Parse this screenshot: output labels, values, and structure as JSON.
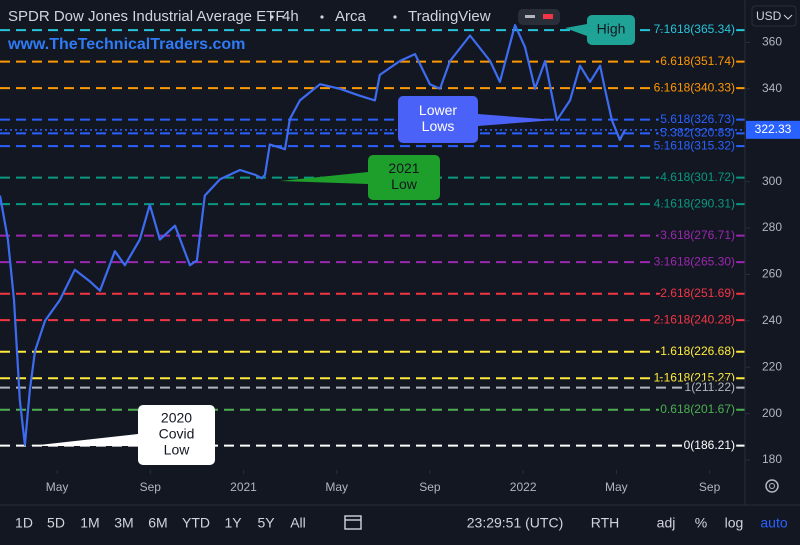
{
  "chart_data": {
    "type": "line",
    "title": "SPDR Dow Jones Industrial Average ETF",
    "interval": "4h",
    "exchange": "Arca",
    "source": "TradingView",
    "watermark": "www.TheTechnicalTraders.com",
    "currency": "USD",
    "last_price": 322.33,
    "xlim": [
      1.55,
      33.52
    ],
    "xticks": [
      {
        "value": 4,
        "label": "May"
      },
      {
        "value": 8,
        "label": "Sep"
      },
      {
        "value": 12,
        "label": "2021"
      },
      {
        "value": 16,
        "label": "May"
      },
      {
        "value": 20,
        "label": "Sep"
      },
      {
        "value": 24,
        "label": "2022"
      },
      {
        "value": 28,
        "label": "May"
      },
      {
        "value": 32,
        "label": "Sep"
      }
    ],
    "ylim": [
      175.7,
      378.3
    ],
    "yticks": [
      180,
      200,
      220,
      240,
      260,
      280,
      300,
      320,
      340,
      360
    ],
    "series": [
      {
        "color": "#3d6cf0",
        "x": [
          1.55,
          1.89,
          2.15,
          2.4,
          2.62,
          2.83,
          3.05,
          3.48,
          4.12,
          4.76,
          5.41,
          5.84,
          6.48,
          6.91,
          7.55,
          7.98,
          8.41,
          9.06,
          9.7,
          10.0,
          10.34,
          10.99,
          11.85,
          12.49,
          12.79,
          12.92,
          13.13,
          13.78,
          13.99,
          14.42,
          15.28,
          16.14,
          17.0,
          17.64,
          17.85,
          18.71,
          19.36,
          20.0,
          20.43,
          20.86,
          21.72,
          22.58,
          23.0,
          23.65,
          24.08,
          24.51,
          24.94,
          25.45,
          26.01,
          26.44,
          26.87,
          27.3,
          27.51,
          27.81,
          28.15,
          28.37
        ],
        "values": [
          294,
          275,
          249,
          206,
          186.5,
          210,
          227,
          240,
          249,
          262,
          257,
          253,
          270,
          264,
          275,
          290,
          275,
          281,
          264,
          266,
          294,
          301,
          305,
          303,
          301.5,
          303,
          316,
          314,
          327,
          335,
          342,
          340,
          337,
          335,
          346,
          352,
          355,
          342,
          340,
          352,
          363,
          352,
          343,
          367.5,
          358,
          340,
          352,
          326.5,
          335,
          350,
          343,
          350,
          340,
          326.5,
          318,
          322.33
        ]
      }
    ],
    "levels": [
      {
        "label": "7.1618(365.34)",
        "value": 365.34,
        "color": "#26c6da"
      },
      {
        "label": "6.618(351.74)",
        "value": 351.74,
        "color": "#ff9800"
      },
      {
        "label": "6.1618(340.33)",
        "value": 340.33,
        "color": "#ff9800"
      },
      {
        "label": "5.618(326.73)",
        "value": 326.73,
        "color": "#2962ff"
      },
      {
        "label": "5.382(320.83)",
        "value": 320.83,
        "color": "#2962ff"
      },
      {
        "label": "5.1618(315.32)",
        "value": 315.32,
        "color": "#2962ff"
      },
      {
        "label": "4.618(301.72)",
        "value": 301.72,
        "color": "#089981"
      },
      {
        "label": "4.1618(290.31)",
        "value": 290.31,
        "color": "#089981"
      },
      {
        "label": "3.618(276.71)",
        "value": 276.71,
        "color": "#9c27b0"
      },
      {
        "label": "3.1618(265.30)",
        "value": 265.3,
        "color": "#9c27b0"
      },
      {
        "label": "2.618(251.69)",
        "value": 251.69,
        "color": "#f23645"
      },
      {
        "label": "2.1618(240.28)",
        "value": 240.28,
        "color": "#f23645"
      },
      {
        "label": "1.618(226.68)",
        "value": 226.68,
        "color": "#ffeb3b"
      },
      {
        "label": "1.1618(215.27)",
        "value": 215.27,
        "color": "#ffeb3b"
      },
      {
        "label": "1(211.22)",
        "value": 211.22,
        "color": "#b2b5be"
      },
      {
        "label": "0.618(201.67)",
        "value": 201.67,
        "color": "#4caf50"
      },
      {
        "label": "0(186.21)",
        "value": 186.21,
        "color": "#ffffff"
      }
    ],
    "annotations": [
      {
        "lines": [
          "High"
        ],
        "fill": "#1fa396",
        "text_color": "#131722"
      },
      {
        "lines": [
          "Lower",
          "Lows"
        ],
        "fill": "#4a62f7",
        "text_color": "#ffffff"
      },
      {
        "lines": [
          "2021",
          "Low"
        ],
        "fill": "#1e9e2a",
        "text_color": "#131722"
      },
      {
        "lines": [
          "2020",
          "Covid",
          "Low"
        ],
        "fill": "#ffffff",
        "text_color": "#131722"
      }
    ],
    "toolbar": {
      "ranges": [
        "1D",
        "5D",
        "1M",
        "3M",
        "6M",
        "YTD",
        "1Y",
        "5Y",
        "All"
      ],
      "time": "23:29:51 (UTC)",
      "session": "RTH",
      "options": [
        "adj",
        "%",
        "log",
        "auto"
      ]
    }
  }
}
